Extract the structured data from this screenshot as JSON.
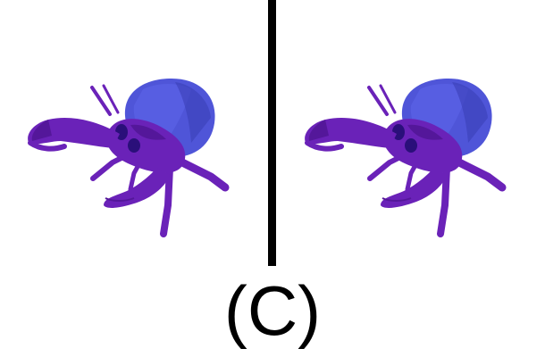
{
  "figure": {
    "caption": "(C)",
    "colors": {
      "shell": "#4f55d8",
      "shell_dark": "#3b3fb8",
      "body": "#6a22b8",
      "body_dark": "#54179a",
      "eye": "#2a0f7a",
      "divider": "#000000"
    },
    "subject_icon": "hermit-crab-icon"
  }
}
